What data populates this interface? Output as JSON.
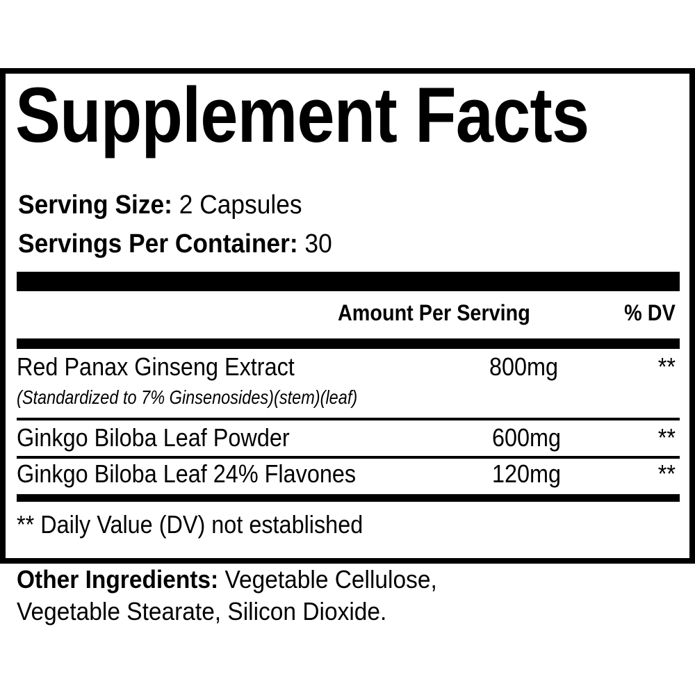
{
  "title": "Supplement Facts",
  "serving_size": {
    "label": "Serving Size:",
    "value": "2 Capsules"
  },
  "servings_per_container": {
    "label": "Servings Per Container:",
    "value": "30"
  },
  "columns": {
    "amount": "Amount Per Serving",
    "dv": "% DV"
  },
  "rows": [
    {
      "name": "Red Panax Ginseng Extract",
      "note": "(Standardized to 7% Ginsenosides)(stem)(leaf)",
      "amount": "800mg",
      "dv": "**"
    },
    {
      "name": "Ginkgo Biloba Leaf Powder",
      "amount": "600mg",
      "dv": "**"
    },
    {
      "name": "Ginkgo Biloba Leaf 24% Flavones",
      "amount": "120mg",
      "dv": "**"
    }
  ],
  "footnote": "** Daily Value (DV) not established",
  "other_ingredients": {
    "label": "Other Ingredients:",
    "line1": "Vegetable Cellulose,",
    "line2": "Vegetable Stearate, Silicon Dioxide."
  }
}
